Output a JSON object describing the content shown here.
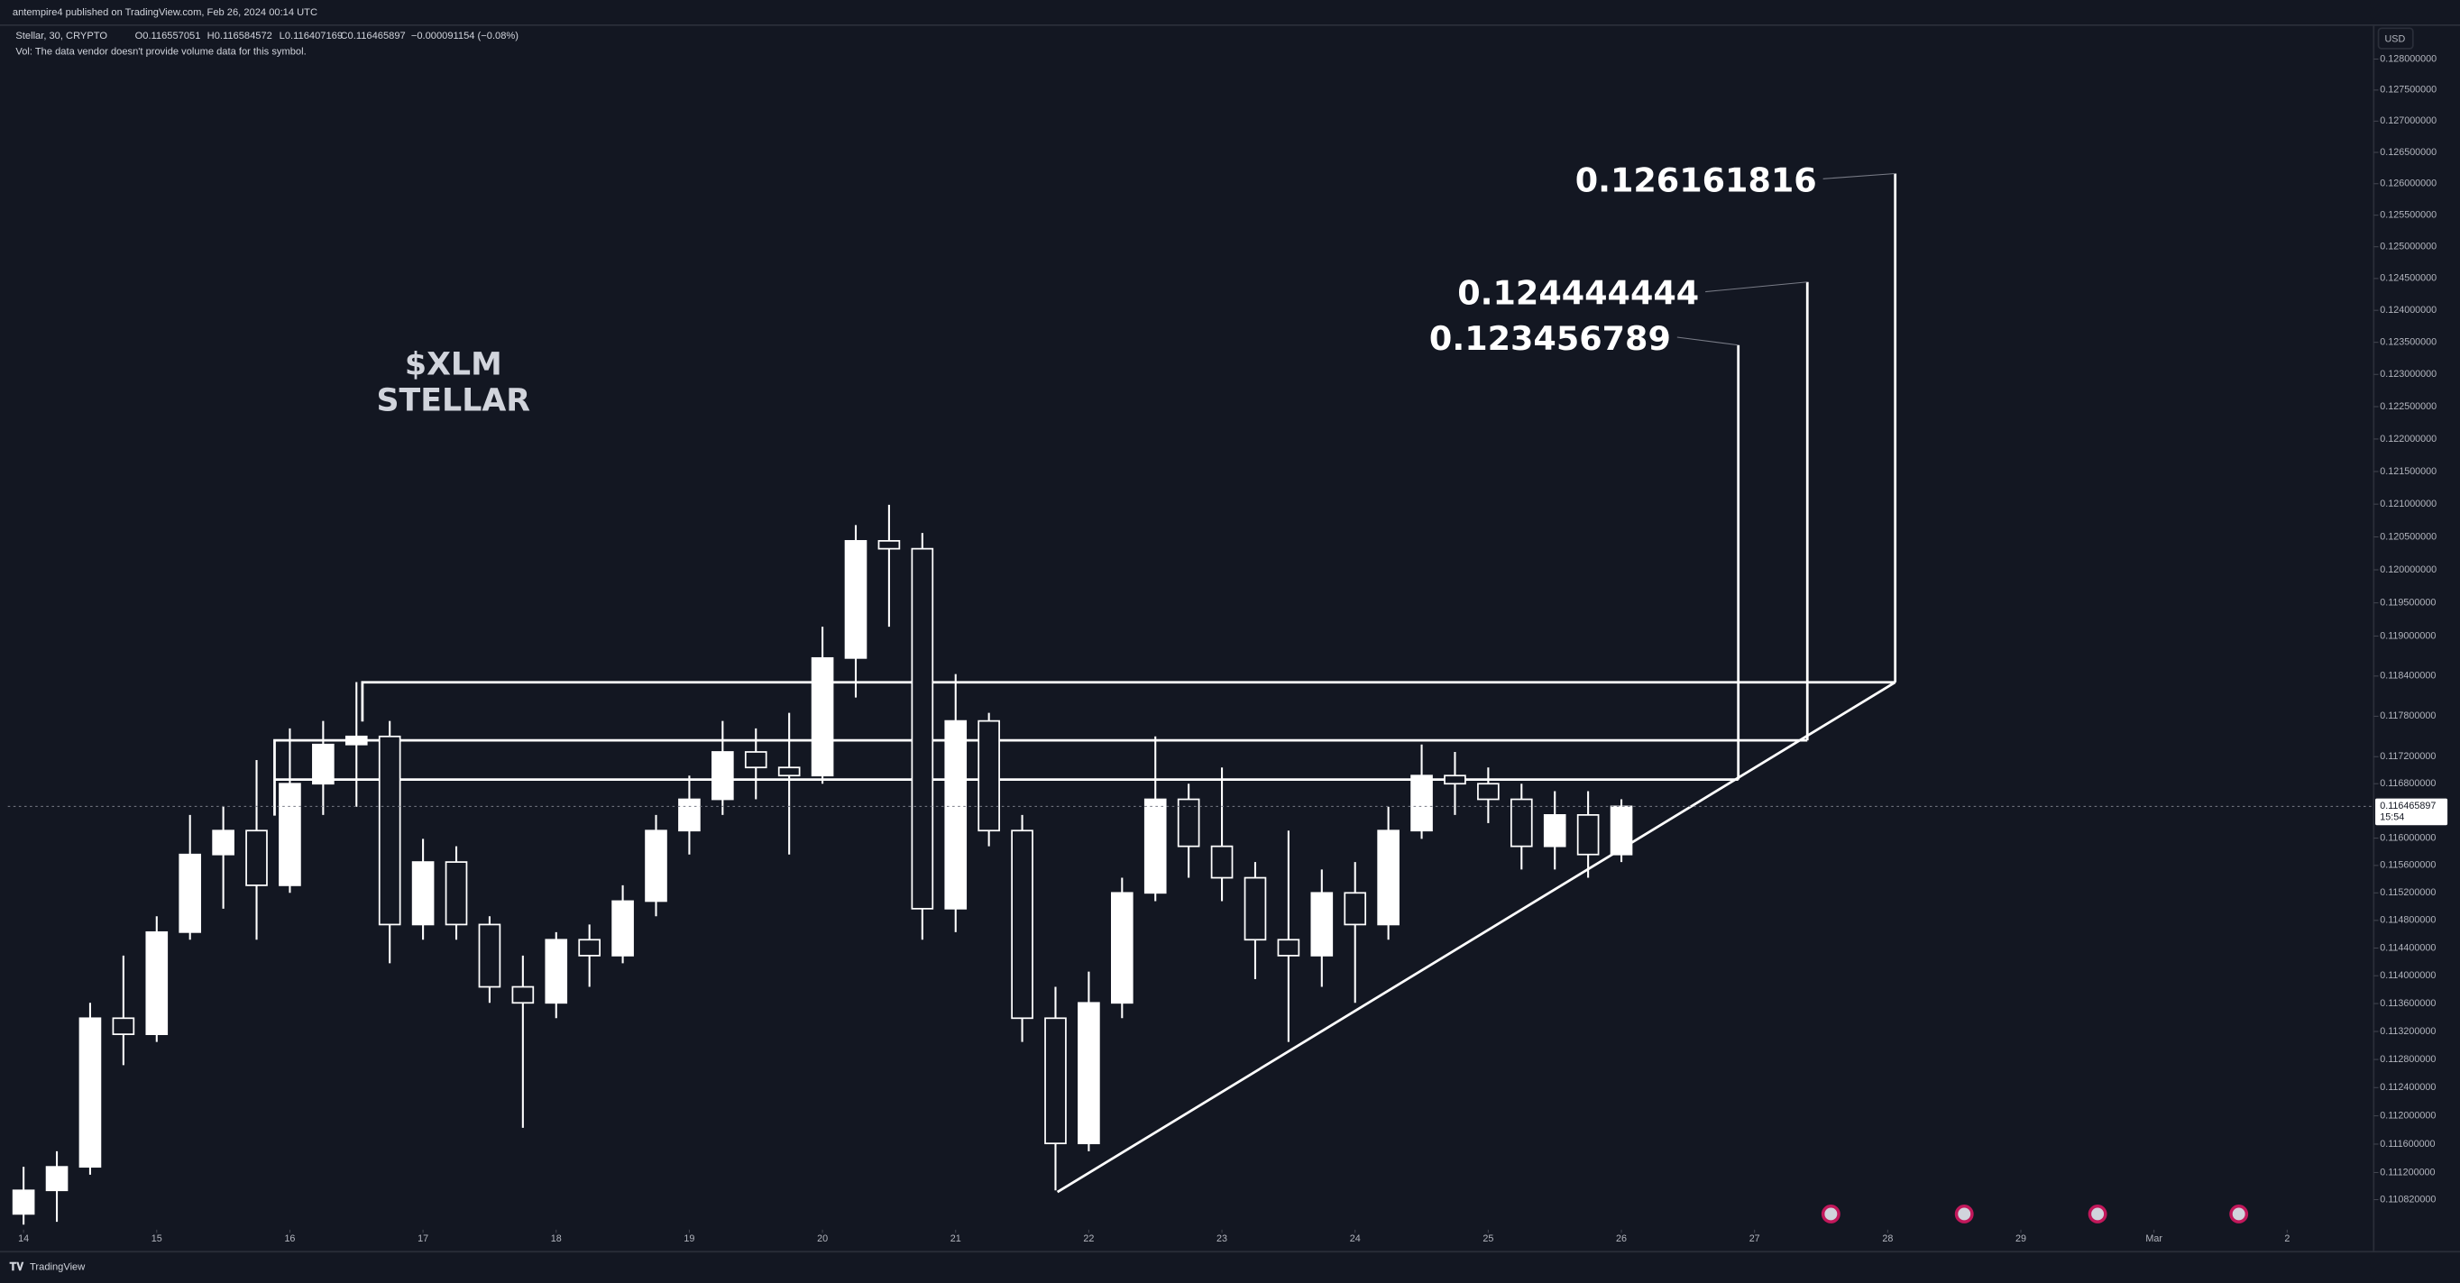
{
  "header": {
    "published": "antempire4 published on TradingView.com, Feb 26, 2024 00:14 UTC",
    "symbol": "Stellar, 30, CRYPTO",
    "ohlc": [
      "O0.116557051",
      "H0.116584572",
      "L0.116407169",
      "C0.116465897",
      "−0.000091154 (−0.08%)"
    ],
    "volume_note": "Vol: The data vendor doesn't provide volume data for this symbol."
  },
  "footer": {
    "brand": "TradingView"
  },
  "chart_data": {
    "type": "candlestick",
    "currency": "USD",
    "log_scale": true,
    "grid": false,
    "candle_color": "#ffffff",
    "drawing_color": "#ffffff",
    "annotations": [
      "$XLM",
      "STELLAR"
    ],
    "targets": [
      0.123456789,
      0.124444444,
      0.126161816
    ],
    "last_price": 0.116465897,
    "countdown": "15:54",
    "x": [
      0,
      0.25,
      0.5,
      0.75,
      1,
      1.25,
      1.5,
      1.75,
      2,
      2.25,
      2.5,
      2.75,
      3,
      3.25,
      3.5,
      3.75,
      4,
      4.25,
      4.5,
      4.75,
      5,
      5.25,
      5.5,
      5.75,
      6,
      6.25,
      6.5,
      6.75,
      7,
      7.25,
      7.5,
      7.75,
      8,
      8.25,
      8.5,
      8.75,
      9,
      9.25,
      9.5,
      9.75,
      10,
      10.25,
      10.5,
      10.75,
      11,
      11.25,
      11.5,
      11.75,
      12
    ],
    "open": [
      0.11062,
      0.11095,
      0.11128,
      0.11339,
      0.11316,
      0.11463,
      0.11576,
      0.11611,
      0.11531,
      0.1168,
      0.11738,
      0.1175,
      0.11474,
      0.11565,
      0.11474,
      0.11384,
      0.11361,
      0.11452,
      0.11429,
      0.11508,
      0.11611,
      0.11657,
      0.11727,
      0.11704,
      0.11692,
      0.11867,
      0.12044,
      0.12032,
      0.11497,
      0.11773,
      0.11611,
      0.11339,
      0.11161,
      0.11361,
      0.1152,
      0.11657,
      0.11588,
      0.11542,
      0.11452,
      0.11429,
      0.1152,
      0.11474,
      0.11611,
      0.11692,
      0.1168,
      0.11657,
      0.11588,
      0.11634,
      0.11576
    ],
    "high": [
      0.11128,
      0.1115,
      0.11361,
      0.11429,
      0.11486,
      0.11634,
      0.11646,
      0.11715,
      0.11762,
      0.11773,
      0.11831,
      0.11773,
      0.11599,
      0.11588,
      0.11486,
      0.11429,
      0.11463,
      0.11474,
      0.11531,
      0.11634,
      0.11692,
      0.11773,
      0.11762,
      0.11785,
      0.11914,
      0.12068,
      0.12099,
      0.12056,
      0.11843,
      0.11785,
      0.11634,
      0.11384,
      0.11406,
      0.11542,
      0.1175,
      0.1168,
      0.11704,
      0.11565,
      0.11611,
      0.11554,
      0.11565,
      0.11646,
      0.11738,
      0.11727,
      0.11704,
      0.1168,
      0.11669,
      0.11669,
      0.11657
    ],
    "low": [
      0.11047,
      0.11051,
      0.11117,
      0.11272,
      0.11305,
      0.11452,
      0.11497,
      0.11452,
      0.1152,
      0.11634,
      0.11646,
      0.11418,
      0.11452,
      0.11452,
      0.11361,
      0.11183,
      0.11339,
      0.11384,
      0.11418,
      0.11486,
      0.11576,
      0.11634,
      0.11657,
      0.11576,
      0.1168,
      0.11808,
      0.11914,
      0.11452,
      0.11463,
      0.11588,
      0.11305,
      0.11095,
      0.1115,
      0.11339,
      0.11508,
      0.11542,
      0.11508,
      0.11395,
      0.11305,
      0.11384,
      0.11361,
      0.11452,
      0.11599,
      0.11634,
      0.11622,
      0.11554,
      0.11554,
      0.11542,
      0.11565
    ],
    "close": [
      0.11095,
      0.11128,
      0.11339,
      0.11316,
      0.11463,
      0.11576,
      0.11611,
      0.11531,
      0.1168,
      0.11738,
      0.1175,
      0.11474,
      0.11565,
      0.11474,
      0.11384,
      0.11361,
      0.11452,
      0.11429,
      0.11508,
      0.11611,
      0.11657,
      0.11727,
      0.11704,
      0.11692,
      0.11867,
      0.12044,
      0.12032,
      0.11497,
      0.11773,
      0.11611,
      0.11339,
      0.11161,
      0.11361,
      0.1152,
      0.11657,
      0.11588,
      0.11542,
      0.11452,
      0.11429,
      0.1152,
      0.11474,
      0.11611,
      0.11692,
      0.1168,
      0.11657,
      0.11588,
      0.11634,
      0.11576,
      0.116466
    ],
    "xlim": [
      -0.118,
      17.65
    ],
    "xticks": [
      {
        "value": 0,
        "label": "14"
      },
      {
        "value": 1,
        "label": "15"
      },
      {
        "value": 2,
        "label": "16"
      },
      {
        "value": 3,
        "label": "17"
      },
      {
        "value": 4,
        "label": "18"
      },
      {
        "value": 5,
        "label": "19"
      },
      {
        "value": 6,
        "label": "20"
      },
      {
        "value": 7,
        "label": "21"
      },
      {
        "value": 8,
        "label": "22"
      },
      {
        "value": 9,
        "label": "23"
      },
      {
        "value": 10,
        "label": "24"
      },
      {
        "value": 11,
        "label": "25"
      },
      {
        "value": 12,
        "label": "26"
      },
      {
        "value": 13,
        "label": "27"
      },
      {
        "value": 14,
        "label": "28"
      },
      {
        "value": 15,
        "label": "29"
      },
      {
        "value": 16,
        "label": "Mar"
      },
      {
        "value": 17,
        "label": "2"
      }
    ],
    "ylim": [
      0.1104,
      0.1285
    ],
    "yticks": [
      {
        "value": 0.128,
        "label": "0.128000000"
      },
      {
        "value": 0.1275,
        "label": "0.127500000"
      },
      {
        "value": 0.127,
        "label": "0.127000000"
      },
      {
        "value": 0.1265,
        "label": "0.126500000"
      },
      {
        "value": 0.126,
        "label": "0.126000000"
      },
      {
        "value": 0.1255,
        "label": "0.125500000"
      },
      {
        "value": 0.125,
        "label": "0.125000000"
      },
      {
        "value": 0.1245,
        "label": "0.124500000"
      },
      {
        "value": 0.124,
        "label": "0.124000000"
      },
      {
        "value": 0.1235,
        "label": "0.123500000"
      },
      {
        "value": 0.123,
        "label": "0.123000000"
      },
      {
        "value": 0.1225,
        "label": "0.122500000"
      },
      {
        "value": 0.122,
        "label": "0.122000000"
      },
      {
        "value": 0.1215,
        "label": "0.121500000"
      },
      {
        "value": 0.121,
        "label": "0.121000000"
      },
      {
        "value": 0.1205,
        "label": "0.120500000"
      },
      {
        "value": 0.12,
        "label": "0.120000000"
      },
      {
        "value": 0.1195,
        "label": "0.119500000"
      },
      {
        "value": 0.119,
        "label": "0.119000000"
      },
      {
        "value": 0.1184,
        "label": "0.118400000"
      },
      {
        "value": 0.1178,
        "label": "0.117800000"
      },
      {
        "value": 0.1172,
        "label": "0.117200000"
      },
      {
        "value": 0.1168,
        "label": "0.116800000"
      },
      {
        "value": 0.116,
        "label": "0.116000000"
      },
      {
        "value": 0.1156,
        "label": "0.115600000"
      },
      {
        "value": 0.1152,
        "label": "0.115200000"
      },
      {
        "value": 0.1148,
        "label": "0.114800000"
      },
      {
        "value": 0.1144,
        "label": "0.114400000"
      },
      {
        "value": 0.114,
        "label": "0.114000000"
      },
      {
        "value": 0.1136,
        "label": "0.113600000"
      },
      {
        "value": 0.1132,
        "label": "0.113200000"
      },
      {
        "value": 0.1128,
        "label": "0.112800000"
      },
      {
        "value": 0.1124,
        "label": "0.112400000"
      },
      {
        "value": 0.112,
        "label": "0.112000000"
      },
      {
        "value": 0.1116,
        "label": "0.111600000"
      },
      {
        "value": 0.1112,
        "label": "0.111200000"
      },
      {
        "value": 0.11082,
        "label": "0.110820000"
      }
    ]
  }
}
